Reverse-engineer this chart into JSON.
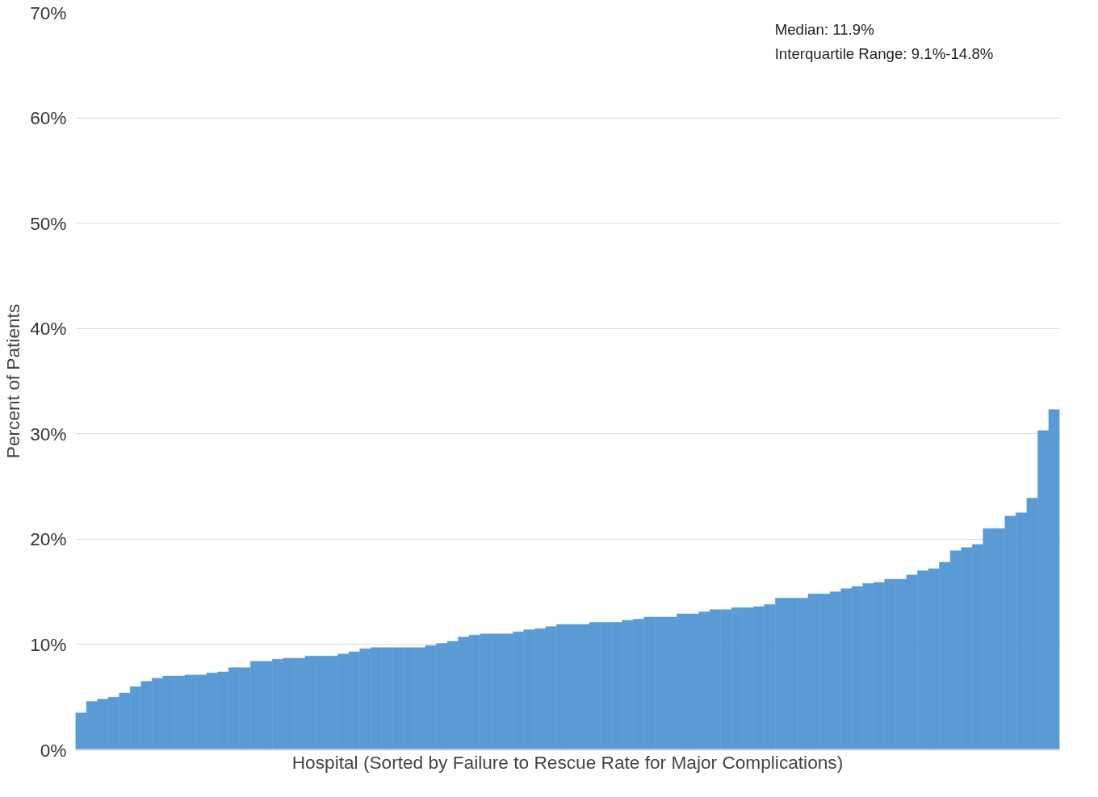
{
  "chart_data": {
    "type": "bar",
    "xlabel": "Hospital (Sorted by Failure to Rescue Rate for Major Complications)",
    "ylabel": "Percent of Patients",
    "categories": [
      null,
      null,
      null,
      null,
      null,
      null,
      null,
      null,
      null,
      null,
      null,
      null,
      null,
      null,
      null,
      null,
      null,
      null,
      null,
      null,
      null,
      null,
      null,
      null,
      null,
      null,
      null,
      null,
      null,
      null,
      null,
      null,
      null,
      null,
      null,
      null,
      null,
      null,
      null,
      null,
      null,
      null,
      null,
      null,
      null,
      null,
      null,
      null,
      null,
      null,
      null,
      null,
      null,
      null,
      null,
      null,
      null,
      null,
      null,
      null,
      null,
      null,
      null,
      null,
      null,
      null,
      null,
      null,
      null,
      null,
      null,
      null,
      null,
      null,
      null,
      null,
      null,
      null,
      null,
      null,
      null,
      null,
      null,
      null,
      null,
      null,
      null,
      null,
      null,
      null
    ],
    "values": [
      3.5,
      4.6,
      4.8,
      5.0,
      5.4,
      6.0,
      6.5,
      6.8,
      7.0,
      7.0,
      7.1,
      7.1,
      7.3,
      7.4,
      7.8,
      7.8,
      8.4,
      8.4,
      8.6,
      8.7,
      8.7,
      8.9,
      8.9,
      8.9,
      9.1,
      9.3,
      9.6,
      9.7,
      9.7,
      9.7,
      9.7,
      9.7,
      9.9,
      10.1,
      10.3,
      10.7,
      10.9,
      11.0,
      11.0,
      11.0,
      11.2,
      11.4,
      11.5,
      11.7,
      11.9,
      11.9,
      11.9,
      12.1,
      12.1,
      12.1,
      12.3,
      12.4,
      12.6,
      12.6,
      12.6,
      12.9,
      12.9,
      13.1,
      13.3,
      13.3,
      13.5,
      13.5,
      13.6,
      13.8,
      14.4,
      14.4,
      14.4,
      14.8,
      14.8,
      15.0,
      15.3,
      15.5,
      15.8,
      15.9,
      16.2,
      16.2,
      16.6,
      17.0,
      17.2,
      17.8,
      18.9,
      19.2,
      19.5,
      21.0,
      21.0,
      22.2,
      22.5,
      23.9,
      30.3,
      32.3
    ],
    "color": "#5b9bd5",
    "ylim": [
      0,
      70
    ],
    "yticks": [
      {
        "value": 0,
        "label": "0%"
      },
      {
        "value": 10,
        "label": "10%"
      },
      {
        "value": 20,
        "label": "20%"
      },
      {
        "value": 30,
        "label": "30%"
      },
      {
        "value": 40,
        "label": "40%"
      },
      {
        "value": 50,
        "label": "50%"
      },
      {
        "value": 60,
        "label": "60%"
      },
      {
        "value": 70,
        "label": "70%"
      }
    ],
    "grid": "y",
    "tick_labels": "y",
    "annotations": [
      "Median: 11.9%",
      "Interquartile Range: 9.1%-14.8%"
    ]
  }
}
